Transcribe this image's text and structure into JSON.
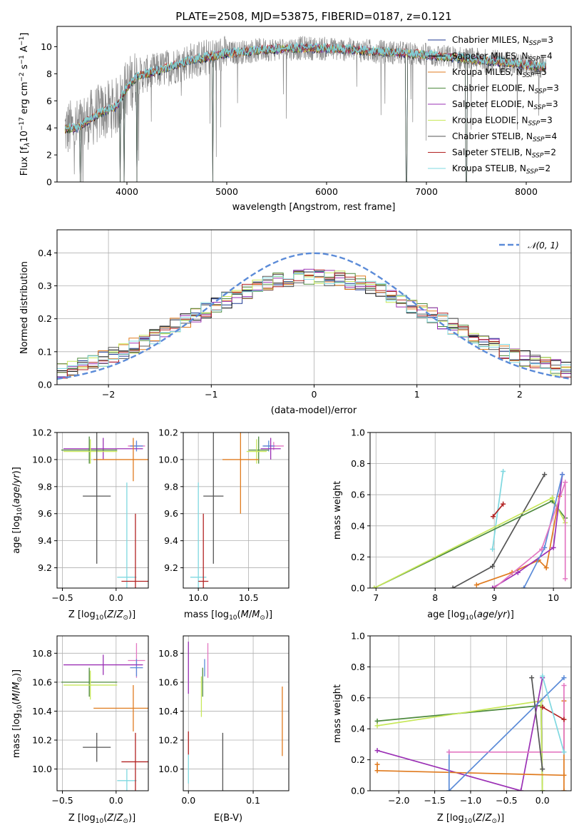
{
  "chart_data": [
    {
      "id": "spectrum",
      "type": "line",
      "title": "PLATE=2508, MJD=53875, FIBERID=0187, z=0.121",
      "xlabel": "wavelength [Angstrom, rest frame]",
      "ylabel": "Flux [f_λ10^−17 erg cm^−2 s^−1 A^−1]",
      "xlim": [
        3300,
        8450
      ],
      "ylim": [
        0,
        11.5
      ],
      "xticks": [
        4000,
        5000,
        6000,
        7000,
        8000
      ],
      "yticks": [
        0,
        2,
        4,
        6,
        8,
        10
      ],
      "grid": false,
      "legend_position": "top-right",
      "data_range": [
        3380,
        8200
      ],
      "continuum_x": [
        3380,
        3500,
        3700,
        3900,
        4000,
        4100,
        4300,
        4600,
        5000,
        5400,
        5800,
        6200,
        6600,
        7000,
        7400,
        7800,
        8200
      ],
      "continuum_y": [
        3.9,
        4.0,
        5.0,
        5.6,
        7.0,
        7.8,
        8.2,
        8.9,
        9.5,
        9.8,
        9.9,
        9.8,
        9.6,
        9.4,
        9.1,
        8.8,
        8.5
      ],
      "dips": [
        3530,
        3930,
        3970,
        4100,
        4860,
        6800,
        7400
      ],
      "series": [
        {
          "name": "Chabrier MILES, N_SSP=3",
          "color": "#1f3a93"
        },
        {
          "name": "Salpeter MILES, N_SSP=4",
          "color": "#000000"
        },
        {
          "name": "Kroupa MILES, N_SSP=5",
          "color": "#e07b1f"
        },
        {
          "name": "Chabrier ELODIE, N_SSP=3",
          "color": "#4e8a3e"
        },
        {
          "name": "Salpeter ELODIE, N_SSP=3",
          "color": "#9b30b5"
        },
        {
          "name": "Kroupa ELODIE, N_SSP=3",
          "color": "#c8e85a"
        },
        {
          "name": "Chabrier STELIB, N_SSP=4",
          "color": "#555555"
        },
        {
          "name": "Salpeter STELIB, N_SSP=2",
          "color": "#b22222"
        },
        {
          "name": "Kroupa STELIB, N_SSP=2",
          "color": "#7fd8e0"
        }
      ]
    },
    {
      "id": "residuals",
      "type": "line",
      "xlabel": "(data-model)/error",
      "ylabel": "Normed distribution",
      "xlim": [
        -2.5,
        2.5
      ],
      "ylim": [
        0,
        0.47
      ],
      "xticks": [
        -2,
        -1,
        0,
        1,
        2
      ],
      "yticks": [
        0.0,
        0.1,
        0.2,
        0.3,
        0.4
      ],
      "grid": true,
      "legend_position": "top-right",
      "normal_label": "𝒩(0, 1)",
      "normal_color": "#5b8bd8",
      "bin_width": 0.1,
      "hist_colors": [
        "#1f3a93",
        "#000000",
        "#e07b1f",
        "#4e8a3e",
        "#9b30b5",
        "#c8e85a",
        "#555555",
        "#b22222",
        "#7fd8e0"
      ]
    },
    {
      "id": "age-vs-Z",
      "type": "scatter",
      "xlabel": "Z [log10(Z/Z⊙)]",
      "ylabel": "age  [log10(age/yr)]",
      "xlim": [
        -0.55,
        0.3
      ],
      "ylim": [
        9.05,
        10.2
      ],
      "xticks": [
        -0.5,
        0.0
      ],
      "xticklabels": [
        "−0.5",
        "0.0"
      ],
      "yticks": [
        9.2,
        9.4,
        9.6,
        9.8,
        10.0,
        10.2
      ],
      "grid": true,
      "points": [
        {
          "x": 0.19,
          "y": 10.1,
          "xe": 0.08,
          "ye": 0.03,
          "color": "#e377c2"
        },
        {
          "x": 0.19,
          "y": 10.1,
          "xe": 0.06,
          "ye": 0.04,
          "color": "#5b8bd8"
        },
        {
          "x": -0.12,
          "y": 10.08,
          "xe": 0.37,
          "ye": 0.08,
          "color": "#9b30b5"
        },
        {
          "x": -0.25,
          "y": 10.07,
          "xe": 0.26,
          "ye": 0.1,
          "color": "#4e8a3e"
        },
        {
          "x": -0.24,
          "y": 10.06,
          "xe": 0.25,
          "ye": 0.09,
          "color": "#c8e85a"
        },
        {
          "x": 0.16,
          "y": 10.0,
          "xe": 0.37,
          "ye": 0.16,
          "color": "#e07b1f"
        },
        {
          "x": -0.18,
          "y": 9.73,
          "xe": 0.13,
          "ye": 0.5,
          "color": "#555555"
        },
        {
          "x": 0.1,
          "y": 9.13,
          "xe": 0.09,
          "ye": 0.7,
          "color": "#7fd8e0"
        },
        {
          "x": 0.18,
          "y": 9.1,
          "xe": 0.13,
          "ye": 0.5,
          "color": "#b22222"
        }
      ]
    },
    {
      "id": "age-vs-mass",
      "type": "scatter",
      "xlabel": "mass [log10(M/M⊙)]",
      "ylabel": "",
      "xlim": [
        9.85,
        10.9
      ],
      "ylim": [
        9.05,
        10.2
      ],
      "xticks": [
        10.0,
        10.5
      ],
      "xticklabels": [
        "10.0",
        "10.5"
      ],
      "yticks": [
        9.2,
        9.4,
        9.6,
        9.8,
        10.0,
        10.2
      ],
      "grid": true,
      "points": [
        {
          "x": 10.75,
          "y": 10.1,
          "xe": 0.1,
          "ye": 0.03,
          "color": "#e377c2"
        },
        {
          "x": 10.7,
          "y": 10.1,
          "xe": 0.06,
          "ye": 0.04,
          "color": "#5b8bd8"
        },
        {
          "x": 10.72,
          "y": 10.08,
          "xe": 0.1,
          "ye": 0.08,
          "color": "#9b30b5"
        },
        {
          "x": 10.6,
          "y": 10.07,
          "xe": 0.1,
          "ye": 0.1,
          "color": "#4e8a3e"
        },
        {
          "x": 10.58,
          "y": 10.06,
          "xe": 0.1,
          "ye": 0.09,
          "color": "#c8e85a"
        },
        {
          "x": 10.42,
          "y": 10.0,
          "xe": 0.18,
          "ye": 0.4,
          "color": "#e07b1f"
        },
        {
          "x": 10.15,
          "y": 9.73,
          "xe": 0.1,
          "ye": 0.5,
          "color": "#555555"
        },
        {
          "x": 10.0,
          "y": 9.13,
          "xe": 0.08,
          "ye": 0.7,
          "color": "#7fd8e0"
        },
        {
          "x": 10.05,
          "y": 9.1,
          "xe": 0.05,
          "ye": 0.5,
          "color": "#b22222"
        }
      ]
    },
    {
      "id": "weight-vs-age",
      "type": "line",
      "xlabel": "age  [log10(age/yr)]",
      "ylabel": "mass weight",
      "xlim": [
        6.9,
        10.3
      ],
      "ylim": [
        0,
        1
      ],
      "xticks": [
        7,
        8,
        9,
        10
      ],
      "yticks": [
        0.0,
        0.2,
        0.4,
        0.6,
        0.8,
        1.0
      ],
      "grid": true,
      "series": [
        {
          "color": "#7fd8e0",
          "x": [
            8.97,
            9.15
          ],
          "y": [
            0.25,
            0.75
          ]
        },
        {
          "color": "#b22222",
          "x": [
            8.98,
            9.15
          ],
          "y": [
            0.46,
            0.54
          ]
        },
        {
          "color": "#555555",
          "x": [
            8.3,
            8.97,
            9.85
          ],
          "y": [
            0.0,
            0.14,
            0.73
          ]
        },
        {
          "color": "#4e8a3e",
          "x": [
            6.97,
            9.98,
            10.2
          ],
          "y": [
            0.0,
            0.56,
            0.45
          ]
        },
        {
          "color": "#c8e85a",
          "x": [
            6.97,
            9.98,
            10.2
          ],
          "y": [
            0.0,
            0.58,
            0.42
          ]
        },
        {
          "color": "#e07b1f",
          "x": [
            8.7,
            9.3,
            9.75,
            9.88,
            10.1
          ],
          "y": [
            0.02,
            0.1,
            0.18,
            0.13,
            0.59
          ]
        },
        {
          "color": "#9b30b5",
          "x": [
            8.97,
            9.4,
            10.0,
            10.15
          ],
          "y": [
            0.0,
            0.1,
            0.26,
            0.73
          ]
        },
        {
          "color": "#5b8bd8",
          "x": [
            9.5,
            9.85,
            10.15
          ],
          "y": [
            0.0,
            0.26,
            0.73
          ]
        },
        {
          "color": "#e377c2",
          "x": [
            9.0,
            9.8,
            10.2,
            10.2
          ],
          "y": [
            0.0,
            0.25,
            0.68,
            0.06
          ]
        }
      ]
    },
    {
      "id": "mass-vs-Z",
      "type": "scatter",
      "xlabel": "Z [log10(Z/Z⊙)]",
      "ylabel": "mass [log10(M/M⊙)]",
      "xlim": [
        -0.55,
        0.3
      ],
      "ylim": [
        9.85,
        10.92
      ],
      "xticks": [
        -0.5,
        0.0
      ],
      "xticklabels": [
        "−0.5",
        "0.0"
      ],
      "yticks": [
        10.0,
        10.2,
        10.4,
        10.6,
        10.8
      ],
      "grid": true,
      "points": [
        {
          "x": 0.19,
          "y": 10.75,
          "xe": 0.08,
          "ye": 0.12,
          "color": "#e377c2"
        },
        {
          "x": 0.19,
          "y": 10.7,
          "xe": 0.06,
          "ye": 0.06,
          "color": "#5b8bd8"
        },
        {
          "x": -0.12,
          "y": 10.72,
          "xe": 0.37,
          "ye": 0.07,
          "color": "#9b30b5"
        },
        {
          "x": -0.25,
          "y": 10.6,
          "xe": 0.26,
          "ye": 0.1,
          "color": "#4e8a3e"
        },
        {
          "x": -0.24,
          "y": 10.58,
          "xe": 0.25,
          "ye": 0.1,
          "color": "#c8e85a"
        },
        {
          "x": 0.16,
          "y": 10.42,
          "xe": 0.37,
          "ye": 0.16,
          "color": "#e07b1f"
        },
        {
          "x": -0.18,
          "y": 10.15,
          "xe": 0.13,
          "ye": 0.1,
          "color": "#555555"
        },
        {
          "x": 0.1,
          "y": 9.92,
          "xe": 0.09,
          "ye": 0.08,
          "color": "#7fd8e0"
        },
        {
          "x": 0.18,
          "y": 10.05,
          "xe": 0.13,
          "ye": 0.2,
          "color": "#b22222"
        }
      ]
    },
    {
      "id": "mass-vs-EBV",
      "type": "scatter",
      "xlabel": "E(B-V)",
      "ylabel": "",
      "xlim": [
        -0.008,
        0.155
      ],
      "ylim": [
        9.85,
        10.92
      ],
      "xticks": [
        0.0,
        0.1
      ],
      "xticklabels": [
        "0.0",
        "0.1"
      ],
      "yticks": [
        10.0,
        10.2,
        10.4,
        10.6,
        10.8
      ],
      "grid": true,
      "points": [
        {
          "x": 0.0,
          "y": 10.7,
          "xe": 0.0,
          "ye": 0.18,
          "color": "#9b30b5"
        },
        {
          "x": 0.03,
          "y": 10.75,
          "xe": 0.0,
          "ye": 0.12,
          "color": "#e377c2"
        },
        {
          "x": 0.025,
          "y": 10.7,
          "xe": 0.0,
          "ye": 0.06,
          "color": "#5b8bd8"
        },
        {
          "x": 0.022,
          "y": 10.6,
          "xe": 0.0,
          "ye": 0.1,
          "color": "#4e8a3e"
        },
        {
          "x": 0.02,
          "y": 10.5,
          "xe": 0.0,
          "ye": 0.14,
          "color": "#c8e85a"
        },
        {
          "x": 0.145,
          "y": 10.33,
          "xe": 0.0,
          "ye": 0.24,
          "color": "#e07b1f"
        },
        {
          "x": 0.053,
          "y": 10.05,
          "xe": 0.0,
          "ye": 0.2,
          "color": "#555555"
        },
        {
          "x": 0.0,
          "y": 10.0,
          "xe": 0.0,
          "ye": 0.1,
          "color": "#7fd8e0"
        },
        {
          "x": 0.0,
          "y": 10.18,
          "xe": 0.0,
          "ye": 0.08,
          "color": "#b22222"
        }
      ]
    },
    {
      "id": "weight-vs-Z",
      "type": "line",
      "xlabel": "Z [log10(Z/Z⊙)]",
      "ylabel": "mass weight",
      "xlim": [
        -2.4,
        0.4
      ],
      "ylim": [
        0,
        1
      ],
      "xticks": [
        -2.0,
        -1.5,
        -1.0,
        -0.5,
        0.0
      ],
      "xticklabels": [
        "−2.0",
        "−1.5",
        "−1.0",
        "−0.5",
        "0.0"
      ],
      "yticks": [
        0.0,
        0.2,
        0.4,
        0.6,
        0.8,
        1.0
      ],
      "grid": true,
      "series": [
        {
          "color": "#4e8a3e",
          "x": [
            -2.3,
            -0.02,
            0.0
          ],
          "y": [
            0.45,
            0.55,
            0.0
          ]
        },
        {
          "color": "#c8e85a",
          "x": [
            -2.3,
            -0.02,
            0.0
          ],
          "y": [
            0.42,
            0.58,
            0.0
          ]
        },
        {
          "color": "#9b30b5",
          "x": [
            -2.3,
            -0.3,
            0.0
          ],
          "y": [
            0.26,
            0.0,
            0.73
          ]
        },
        {
          "color": "#e07b1f",
          "x": [
            -2.3,
            -2.3,
            0.3,
            0.3,
            0.3
          ],
          "y": [
            0.17,
            0.13,
            0.1,
            0.0,
            0.58
          ]
        },
        {
          "color": "#5b8bd8",
          "x": [
            -1.3,
            -1.3,
            0.3
          ],
          "y": [
            0.25,
            0.0,
            0.73
          ]
        },
        {
          "color": "#e377c2",
          "x": [
            -1.3,
            0.3,
            0.3
          ],
          "y": [
            0.25,
            0.25,
            0.68
          ]
        },
        {
          "color": "#555555",
          "x": [
            -0.15,
            0.0
          ],
          "y": [
            0.73,
            0.14
          ]
        },
        {
          "color": "#b22222",
          "x": [
            0.0,
            0.3
          ],
          "y": [
            0.54,
            0.46
          ]
        },
        {
          "color": "#7fd8e0",
          "x": [
            0.0,
            0.3
          ],
          "y": [
            0.74,
            0.25
          ]
        }
      ]
    }
  ]
}
